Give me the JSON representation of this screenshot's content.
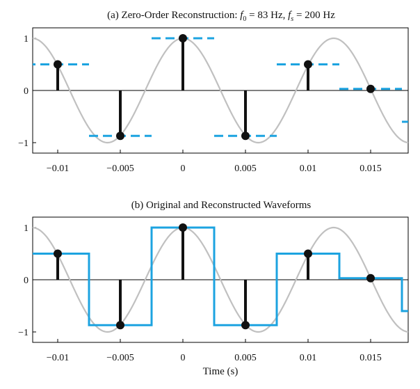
{
  "chart_data": [
    {
      "type": "line",
      "title_parts": {
        "prefix": "(a) Zero-Order Reconstruction:  ",
        "f0_sym": "f",
        "f0_sub": "0",
        "f0_val": " = 83 Hz,  ",
        "fs_sym": "f",
        "fs_sub": "s",
        "fs_val": " = 200 Hz"
      },
      "xlim": [
        -0.012,
        0.018
      ],
      "ylim": [
        -1.2,
        1.2
      ],
      "xticks": [
        -0.01,
        -0.005,
        0,
        0.005,
        0.01,
        0.015
      ],
      "xtick_labels": [
        "−0.01",
        "−0.005",
        "0",
        "0.005",
        "0.01",
        "0.015"
      ],
      "yticks": [
        1,
        0,
        -1
      ],
      "ytick_labels": [
        "1",
        "0",
        "−1"
      ],
      "xlabel": "",
      "series": [
        {
          "name": "original cosine",
          "kind": "curve",
          "f0_hz": 83,
          "color": "#c0c0c0"
        },
        {
          "name": "samples",
          "kind": "stem",
          "color": "#111111",
          "x": [
            -0.01,
            -0.005,
            0,
            0.005,
            0.01,
            0.015
          ],
          "y": [
            0.5,
            -0.87,
            1.0,
            -0.87,
            0.5,
            0.03
          ]
        },
        {
          "name": "zero-order hold segments",
          "kind": "dashed-segments",
          "color": "#1ca3e0",
          "x": [
            -0.0125,
            -0.0075,
            -0.0025,
            0.0025,
            0.0075,
            0.0125,
            0.0175
          ],
          "y": [
            0.5,
            -0.87,
            1.0,
            -0.87,
            0.5,
            0.03,
            -0.6
          ]
        }
      ]
    },
    {
      "type": "line",
      "title": "(b) Original and Reconstructed Waveforms",
      "xlim": [
        -0.012,
        0.018
      ],
      "ylim": [
        -1.2,
        1.2
      ],
      "xticks": [
        -0.01,
        -0.005,
        0,
        0.005,
        0.01,
        0.015
      ],
      "xtick_labels": [
        "−0.01",
        "−0.005",
        "0",
        "0.005",
        "0.01",
        "0.015"
      ],
      "yticks": [
        1,
        0,
        -1
      ],
      "ytick_labels": [
        "1",
        "0",
        "−1"
      ],
      "xlabel": "Time (s)",
      "series": [
        {
          "name": "original cosine",
          "kind": "curve",
          "f0_hz": 83,
          "color": "#c0c0c0"
        },
        {
          "name": "samples",
          "kind": "stem",
          "color": "#111111",
          "x": [
            -0.01,
            -0.005,
            0,
            0.005,
            0.01,
            0.015
          ],
          "y": [
            0.5,
            -0.87,
            1.0,
            -0.87,
            0.5,
            0.03
          ]
        },
        {
          "name": "reconstructed staircase",
          "kind": "staircase",
          "color": "#1ca3e0",
          "x": [
            -0.0125,
            -0.0075,
            -0.0025,
            0.0025,
            0.0075,
            0.0125,
            0.0175
          ],
          "y": [
            0.5,
            -0.87,
            1.0,
            -0.87,
            0.5,
            0.03,
            -0.6
          ]
        }
      ]
    }
  ]
}
